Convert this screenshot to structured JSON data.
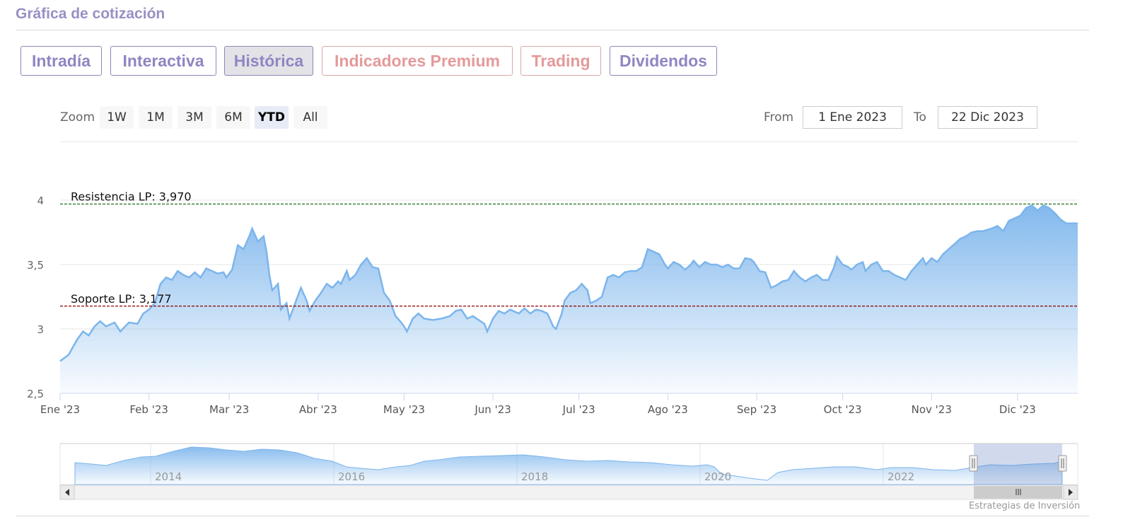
{
  "header": {
    "title": "Gráfica de cotización"
  },
  "tabs": [
    {
      "label": "Intradía",
      "active": false,
      "premium": false
    },
    {
      "label": "Interactiva",
      "active": false,
      "premium": false
    },
    {
      "label": "Histórica",
      "active": true,
      "premium": false
    },
    {
      "label": "Indicadores Premium",
      "active": false,
      "premium": true
    },
    {
      "label": "Trading",
      "active": false,
      "premium": true
    },
    {
      "label": "Dividendos",
      "active": false,
      "premium": false
    }
  ],
  "zoom": {
    "label": "Zoom",
    "buttons": [
      "1W",
      "1M",
      "3M",
      "6M",
      "YTD",
      "All"
    ],
    "selected": "YTD"
  },
  "range": {
    "from_label": "From",
    "from_value": "1 Ene 2023",
    "to_label": "To",
    "to_value": "22 Dic 2023"
  },
  "colors": {
    "series_line": "#7cb5ec",
    "resistance": "#2e7d32",
    "support": "#8b0000"
  },
  "credit": "Estrategias de Inversión",
  "chart_data": {
    "type": "area",
    "y_ticks": [
      "2,5",
      "3",
      "3,5",
      "4"
    ],
    "ylim": [
      2.5,
      4.0
    ],
    "x_ticks": [
      "Ene '23",
      "Feb '23",
      "Mar '23",
      "Abr '23",
      "May '23",
      "Jun '23",
      "Jul '23",
      "Ago '23",
      "Sep '23",
      "Oct '23",
      "Nov '23",
      "Dic '23"
    ],
    "x_tick_days": [
      0,
      31,
      59,
      90,
      120,
      151,
      181,
      212,
      243,
      273,
      304,
      334
    ],
    "xlim_days": [
      0,
      355
    ],
    "series": [
      {
        "points": [
          [
            0,
            2.75
          ],
          [
            3,
            2.8
          ],
          [
            6,
            2.92
          ],
          [
            8,
            2.98
          ],
          [
            10,
            2.95
          ],
          [
            12,
            3.02
          ],
          [
            14,
            3.06
          ],
          [
            16,
            3.02
          ],
          [
            19,
            3.05
          ],
          [
            21,
            2.98
          ],
          [
            24,
            3.05
          ],
          [
            27,
            3.04
          ],
          [
            29,
            3.12
          ],
          [
            31,
            3.15
          ],
          [
            33,
            3.2
          ],
          [
            35,
            3.35
          ],
          [
            37,
            3.4
          ],
          [
            39,
            3.38
          ],
          [
            41,
            3.45
          ],
          [
            43,
            3.42
          ],
          [
            45,
            3.4
          ],
          [
            47,
            3.44
          ],
          [
            49,
            3.4
          ],
          [
            51,
            3.47
          ],
          [
            53,
            3.45
          ],
          [
            55,
            3.43
          ],
          [
            57,
            3.44
          ],
          [
            58,
            3.4
          ],
          [
            60,
            3.46
          ],
          [
            62,
            3.65
          ],
          [
            64,
            3.62
          ],
          [
            66,
            3.72
          ],
          [
            67,
            3.78
          ],
          [
            69,
            3.68
          ],
          [
            71,
            3.72
          ],
          [
            72,
            3.6
          ],
          [
            73,
            3.42
          ],
          [
            74,
            3.3
          ],
          [
            76,
            3.35
          ],
          [
            77,
            3.15
          ],
          [
            79,
            3.2
          ],
          [
            80,
            3.08
          ],
          [
            82,
            3.2
          ],
          [
            84,
            3.32
          ],
          [
            86,
            3.22
          ],
          [
            87,
            3.14
          ],
          [
            89,
            3.22
          ],
          [
            91,
            3.28
          ],
          [
            93,
            3.35
          ],
          [
            95,
            3.32
          ],
          [
            97,
            3.37
          ],
          [
            98,
            3.35
          ],
          [
            100,
            3.45
          ],
          [
            101,
            3.38
          ],
          [
            103,
            3.42
          ],
          [
            105,
            3.5
          ],
          [
            107,
            3.55
          ],
          [
            109,
            3.48
          ],
          [
            111,
            3.47
          ],
          [
            113,
            3.28
          ],
          [
            115,
            3.22
          ],
          [
            117,
            3.1
          ],
          [
            119,
            3.05
          ],
          [
            120,
            3.02
          ],
          [
            121,
            2.98
          ],
          [
            123,
            3.08
          ],
          [
            125,
            3.12
          ],
          [
            127,
            3.08
          ],
          [
            130,
            3.07
          ],
          [
            133,
            3.08
          ],
          [
            136,
            3.1
          ],
          [
            138,
            3.14
          ],
          [
            140,
            3.15
          ],
          [
            142,
            3.08
          ],
          [
            144,
            3.1
          ],
          [
            146,
            3.07
          ],
          [
            148,
            3.04
          ],
          [
            149,
            2.98
          ],
          [
            151,
            3.08
          ],
          [
            153,
            3.14
          ],
          [
            155,
            3.12
          ],
          [
            157,
            3.15
          ],
          [
            160,
            3.12
          ],
          [
            162,
            3.16
          ],
          [
            164,
            3.12
          ],
          [
            166,
            3.15
          ],
          [
            168,
            3.14
          ],
          [
            170,
            3.12
          ],
          [
            172,
            3.02
          ],
          [
            173,
            3.0
          ],
          [
            175,
            3.12
          ],
          [
            176,
            3.22
          ],
          [
            178,
            3.28
          ],
          [
            180,
            3.3
          ],
          [
            182,
            3.35
          ],
          [
            184,
            3.3
          ],
          [
            185,
            3.2
          ],
          [
            187,
            3.22
          ],
          [
            189,
            3.25
          ],
          [
            191,
            3.4
          ],
          [
            193,
            3.42
          ],
          [
            195,
            3.4
          ],
          [
            197,
            3.44
          ],
          [
            199,
            3.45
          ],
          [
            201,
            3.45
          ],
          [
            203,
            3.48
          ],
          [
            205,
            3.62
          ],
          [
            207,
            3.6
          ],
          [
            209,
            3.58
          ],
          [
            211,
            3.5
          ],
          [
            212,
            3.47
          ],
          [
            214,
            3.52
          ],
          [
            216,
            3.5
          ],
          [
            218,
            3.46
          ],
          [
            220,
            3.5
          ],
          [
            221,
            3.53
          ],
          [
            223,
            3.48
          ],
          [
            225,
            3.52
          ],
          [
            227,
            3.5
          ],
          [
            229,
            3.5
          ],
          [
            231,
            3.48
          ],
          [
            233,
            3.5
          ],
          [
            235,
            3.47
          ],
          [
            237,
            3.47
          ],
          [
            239,
            3.55
          ],
          [
            241,
            3.54
          ],
          [
            242,
            3.52
          ],
          [
            244,
            3.45
          ],
          [
            246,
            3.44
          ],
          [
            248,
            3.32
          ],
          [
            250,
            3.34
          ],
          [
            252,
            3.37
          ],
          [
            254,
            3.38
          ],
          [
            256,
            3.45
          ],
          [
            258,
            3.4
          ],
          [
            260,
            3.37
          ],
          [
            262,
            3.4
          ],
          [
            264,
            3.42
          ],
          [
            266,
            3.38
          ],
          [
            268,
            3.38
          ],
          [
            270,
            3.48
          ],
          [
            271,
            3.56
          ],
          [
            273,
            3.5
          ],
          [
            275,
            3.48
          ],
          [
            276,
            3.46
          ],
          [
            278,
            3.5
          ],
          [
            280,
            3.52
          ],
          [
            281,
            3.45
          ],
          [
            283,
            3.5
          ],
          [
            285,
            3.52
          ],
          [
            287,
            3.45
          ],
          [
            289,
            3.45
          ],
          [
            291,
            3.42
          ],
          [
            293,
            3.4
          ],
          [
            295,
            3.38
          ],
          [
            297,
            3.45
          ],
          [
            299,
            3.5
          ],
          [
            301,
            3.55
          ],
          [
            302,
            3.5
          ],
          [
            304,
            3.55
          ],
          [
            306,
            3.52
          ],
          [
            308,
            3.58
          ],
          [
            310,
            3.62
          ],
          [
            312,
            3.66
          ],
          [
            314,
            3.7
          ],
          [
            316,
            3.72
          ],
          [
            318,
            3.75
          ],
          [
            320,
            3.76
          ],
          [
            322,
            3.76
          ],
          [
            325,
            3.78
          ],
          [
            327,
            3.8
          ],
          [
            329,
            3.76
          ],
          [
            331,
            3.84
          ],
          [
            333,
            3.86
          ],
          [
            335,
            3.88
          ],
          [
            337,
            3.94
          ],
          [
            339,
            3.96
          ],
          [
            341,
            3.92
          ],
          [
            343,
            3.96
          ],
          [
            345,
            3.94
          ],
          [
            347,
            3.9
          ],
          [
            349,
            3.85
          ],
          [
            351,
            3.82
          ],
          [
            353,
            3.82
          ],
          [
            355,
            3.82
          ]
        ]
      }
    ],
    "annotations": [
      {
        "label": "Resistencia LP: 3,970",
        "y": 3.97
      },
      {
        "label": "Soporte LP: 3,177",
        "y": 3.177
      }
    ],
    "navigator": {
      "x_ticks": [
        "2014",
        "2016",
        "2018",
        "2020",
        "2022"
      ]
    }
  }
}
